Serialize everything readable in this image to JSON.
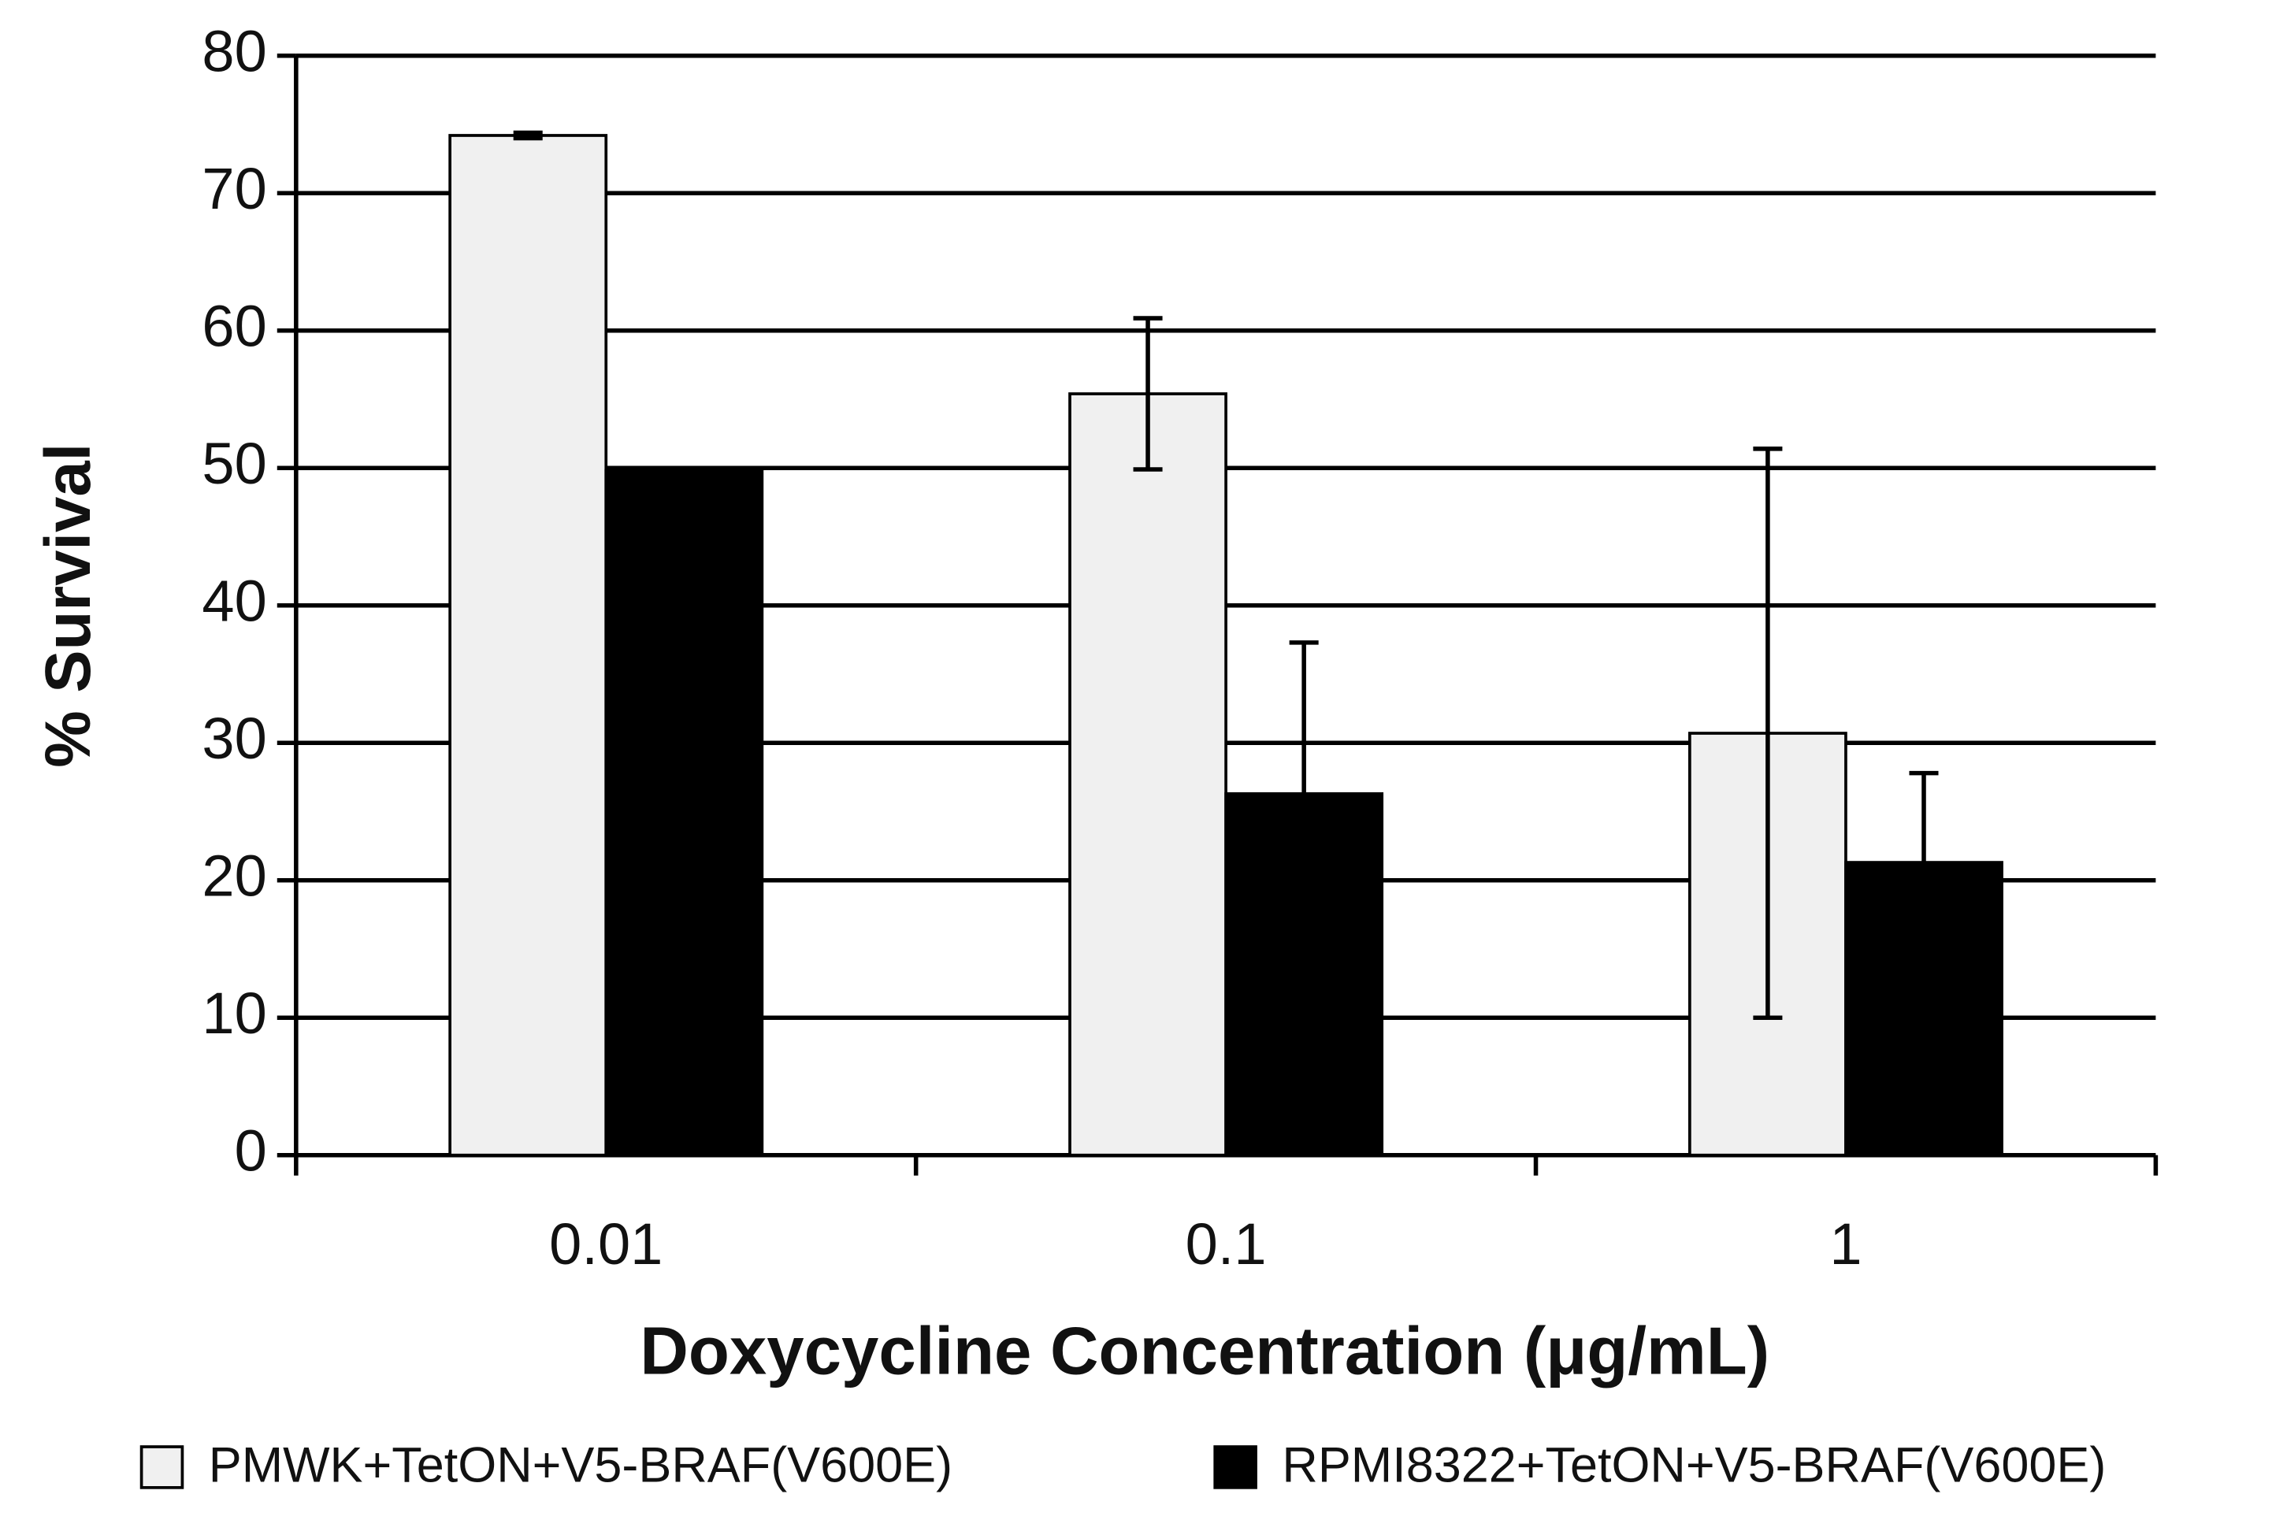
{
  "chart_data": {
    "type": "bar",
    "x_label": "Doxycycline Concentration (μg/mL)",
    "y_label": "% Survival",
    "categories": [
      "0.01",
      "0.1",
      "1"
    ],
    "series": [
      {
        "name": "PMWK+TetON+V5-BRAF(V600E)",
        "color": "#f0f0f0",
        "values": [
          74.2,
          55.4,
          30.7
        ],
        "errors": [
          0.2,
          5.5,
          20.7
        ]
      },
      {
        "name": "RPMI8322+TetON+V5-BRAF(V600E)",
        "color": "#000000",
        "values": [
          49.8,
          26.3,
          21.3
        ],
        "errors": [
          0.2,
          11,
          6.5
        ]
      }
    ],
    "ylim": [
      0,
      80
    ],
    "yticks": [
      0,
      10,
      20,
      30,
      40,
      50,
      60,
      70,
      80
    ],
    "grid": true,
    "legend": "bottom"
  }
}
